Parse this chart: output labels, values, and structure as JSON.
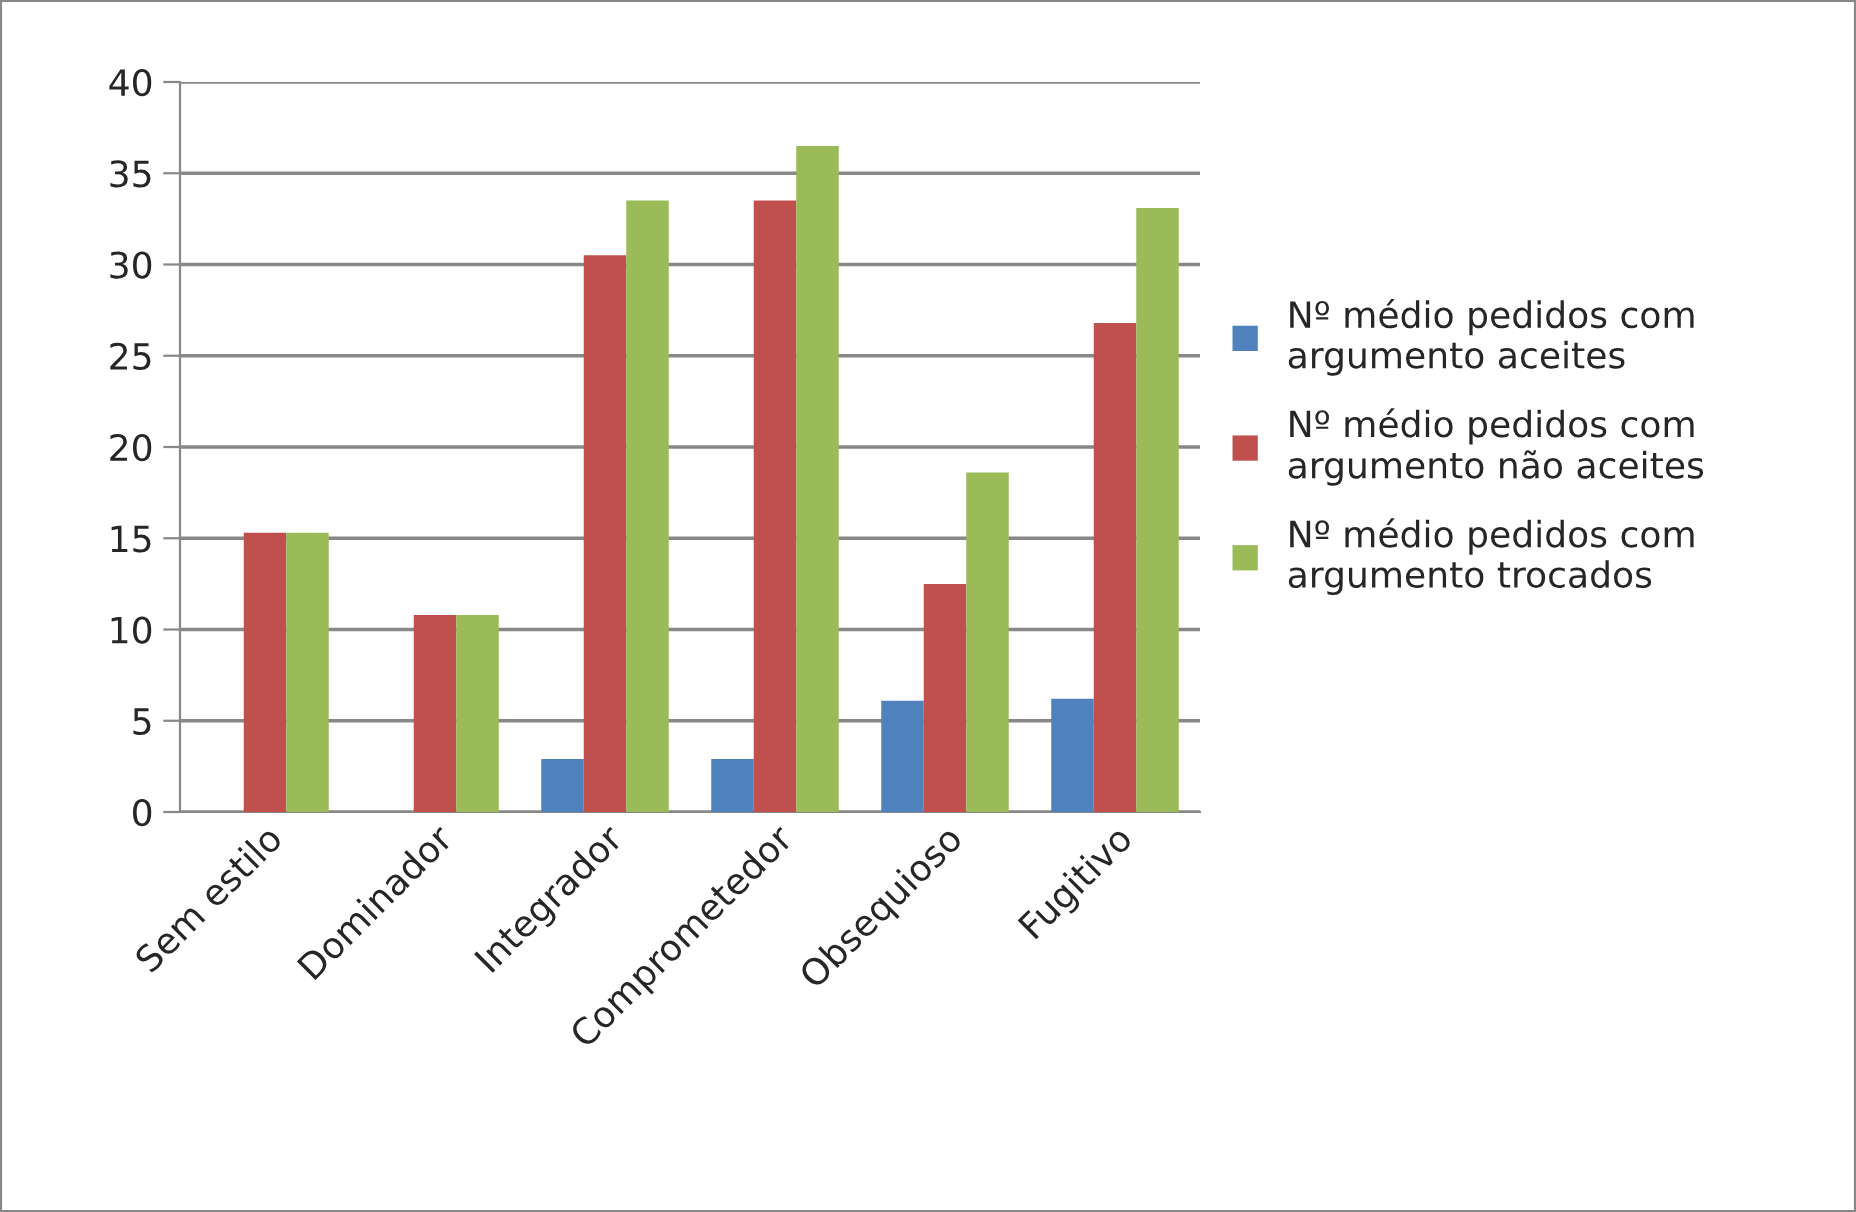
{
  "chart_data": {
    "type": "bar",
    "categories": [
      "Sem estilo",
      "Dominador",
      "Integrador",
      "Comprometedor",
      "Obsequioso",
      "Fugitivo"
    ],
    "series": [
      {
        "name": "Nº médio pedidos com argumento aceites",
        "color": "#4f81bd",
        "values": [
          null,
          null,
          2.9,
          2.9,
          6.1,
          6.2
        ]
      },
      {
        "name": "Nº médio pedidos com argumento não aceites",
        "color": "#c0504d",
        "values": [
          15.3,
          10.8,
          30.5,
          33.5,
          12.5,
          26.8
        ]
      },
      {
        "name": "Nº médio pedidos com argumento trocados",
        "color": "#9bbb59",
        "values": [
          15.3,
          10.8,
          33.5,
          36.5,
          18.6,
          33.1
        ]
      }
    ],
    "ylim": [
      0,
      40
    ],
    "yticks": [
      0,
      5,
      10,
      15,
      20,
      25,
      30,
      35,
      40
    ],
    "grid": "y",
    "legend": "right"
  }
}
